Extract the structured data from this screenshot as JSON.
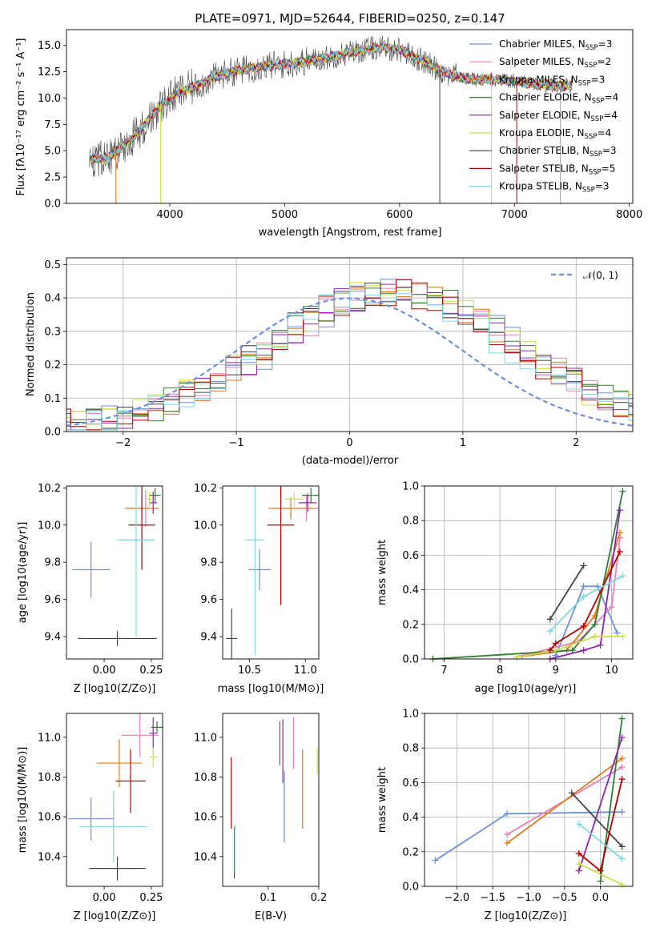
{
  "palette": [
    "#6b8fdc",
    "#e87fb8",
    "#e07a1e",
    "#2e7d32",
    "#8e24aa",
    "#c8e04a",
    "#444444",
    "#b00000",
    "#7fd8e0"
  ],
  "chart_data": [
    {
      "id": "spectrum",
      "type": "line",
      "title": "PLATE=0971, MJD=52644, FIBERID=0250, z=0.147",
      "xlabel": "wavelength [Angstrom, rest frame]",
      "ylabel": "Flux [fλ10⁻¹⁷ erg cm⁻² s⁻¹ A⁻¹]",
      "xlim": [
        3100,
        8030
      ],
      "ylim": [
        0,
        16.5
      ],
      "xticks": [
        "4000",
        "5000",
        "6000",
        "7000",
        "8000"
      ],
      "yticks": [
        "0.0",
        "2.5",
        "5.0",
        "7.5",
        "10.0",
        "12.5",
        "15.0"
      ],
      "legend_position": "top-right",
      "series": [
        {
          "name": "Chabrier MILES, N_SSP=3",
          "label_main": "Chabrier MILES, N",
          "label_sub": "SSP",
          "label_tail": "=3"
        },
        {
          "name": "Salpeter MILES, N_SSP=2",
          "label_main": "Salpeter MILES, N",
          "label_sub": "SSP",
          "label_tail": "=2"
        },
        {
          "name": "Kroupa MILES, N_SSP=3",
          "label_main": "Kroupa MILES, N",
          "label_sub": "SSP",
          "label_tail": "=3"
        },
        {
          "name": "Chabrier ELODIE, N_SSP=4",
          "label_main": "Chabrier ELODIE, N",
          "label_sub": "SSP",
          "label_tail": "=4"
        },
        {
          "name": "Salpeter ELODIE, N_SSP=4",
          "label_main": "Salpeter ELODIE, N",
          "label_sub": "SSP",
          "label_tail": "=4"
        },
        {
          "name": "Kroupa ELODIE, N_SSP=4",
          "label_main": "Kroupa ELODIE, N",
          "label_sub": "SSP",
          "label_tail": "=4"
        },
        {
          "name": "Chabrier STELIB, N_SSP=3",
          "label_main": "Chabrier STELIB, N",
          "label_sub": "SSP",
          "label_tail": "=3"
        },
        {
          "name": "Salpeter STELIB, N_SSP=5",
          "label_main": "Salpeter STELIB, N",
          "label_sub": "SSP",
          "label_tail": "=5"
        },
        {
          "name": "Kroupa STELIB, N_SSP=3",
          "label_main": "Kroupa STELIB, N",
          "label_sub": "SSP",
          "label_tail": "=3"
        }
      ],
      "continuum": {
        "x": [
          3300,
          3400,
          3500,
          3600,
          3700,
          3800,
          3900,
          4000,
          4100,
          4200,
          4300,
          4400,
          4500,
          4600,
          4700,
          4800,
          4900,
          5000,
          5200,
          5400,
          5600,
          5800,
          6000,
          6200,
          6400,
          6600,
          6800,
          7000,
          7200,
          7400,
          7500
        ],
        "y": [
          4.3,
          4.2,
          4.6,
          5.5,
          6.5,
          7.8,
          9.0,
          10.0,
          10.6,
          11.0,
          11.5,
          12.0,
          12.4,
          12.6,
          12.8,
          13.0,
          13.1,
          13.2,
          13.5,
          13.9,
          14.4,
          14.8,
          14.6,
          13.5,
          12.4,
          11.8,
          11.8,
          11.6,
          11.3,
          11.2,
          11.2
        ]
      }
    },
    {
      "id": "residuals",
      "type": "histogram",
      "xlabel": "(data-model)/error",
      "ylabel": "Normed distribution",
      "xlim": [
        -2.5,
        2.5
      ],
      "ylim": [
        0,
        0.52
      ],
      "xticks": [
        "−2",
        "−1",
        "0",
        "1",
        "2"
      ],
      "yticks": [
        "0.0",
        "0.1",
        "0.2",
        "0.3",
        "0.4",
        "0.5"
      ],
      "reference_curve": {
        "name": "𝒩(0, 1)",
        "mean": 0,
        "sigma": 1
      },
      "grid": true
    },
    {
      "id": "age-vs-Z",
      "type": "errorbar",
      "xlabel": "Z [log10(Z/Z⊙)]",
      "ylabel": "age  [log10(age/yr)]",
      "xlim": [
        -0.2,
        0.31
      ],
      "ylim": [
        9.28,
        10.21
      ],
      "xticks": [
        "0.00",
        "0.25"
      ],
      "yticks": [
        "9.4",
        "9.6",
        "9.8",
        "10.0",
        "10.2"
      ],
      "points": [
        {
          "x": -0.07,
          "xerr": 0.1,
          "y": 9.76,
          "yerr": 0.15
        },
        {
          "x": 0.22,
          "xerr": 0.04,
          "y": 10.09,
          "yerr": 0.1
        },
        {
          "x": 0.2,
          "xerr": 0.09,
          "y": 10.09,
          "yerr": 0.06
        },
        {
          "x": 0.27,
          "xerr": 0.03,
          "y": 10.16,
          "yerr": 0.04
        },
        {
          "x": 0.26,
          "xerr": 0.02,
          "y": 10.12,
          "yerr": 0.06
        },
        {
          "x": 0.24,
          "xerr": 0.01,
          "y": 10.14,
          "yerr": 0.04
        },
        {
          "x": 0.07,
          "xerr": 0.21,
          "y": 9.39,
          "yerr": 0.04
        },
        {
          "x": 0.2,
          "xerr": 0.07,
          "y": 10.0,
          "yerr": 0.24
        },
        {
          "x": 0.17,
          "xerr": 0.1,
          "y": 9.92,
          "yerr": 0.52
        }
      ]
    },
    {
      "id": "age-vs-mass",
      "type": "errorbar",
      "xlabel": "mass [log10(M/M⊙)]",
      "ylabel": "",
      "xlim": [
        10.26,
        11.12
      ],
      "ylim": [
        9.28,
        10.21
      ],
      "xticks": [
        "10.5",
        "11.0"
      ],
      "yticks": [
        "9.4",
        "9.6",
        "9.8",
        "10.0",
        "10.2"
      ],
      "points": [
        {
          "x": 10.59,
          "xerr": 0.1,
          "y": 9.76,
          "yerr": 0.11
        },
        {
          "x": 11.01,
          "xerr": 0.12,
          "y": 10.09,
          "yerr": 0.07
        },
        {
          "x": 10.87,
          "xerr": 0.2,
          "y": 10.09,
          "yerr": 0.06
        },
        {
          "x": 11.05,
          "xerr": 0.08,
          "y": 10.16,
          "yerr": 0.04
        },
        {
          "x": 11.02,
          "xerr": 0.08,
          "y": 10.12,
          "yerr": 0.05
        },
        {
          "x": 10.9,
          "xerr": 0.08,
          "y": 10.14,
          "yerr": 0.04
        },
        {
          "x": 10.34,
          "xerr": 0.05,
          "y": 9.39,
          "yerr": 0.16
        },
        {
          "x": 10.78,
          "xerr": 0.12,
          "y": 10.0,
          "yerr": 0.43
        },
        {
          "x": 10.55,
          "xerr": 0.08,
          "y": 9.92,
          "yerr": 0.62
        }
      ]
    },
    {
      "id": "weight-vs-age",
      "type": "line",
      "xlabel": "age  [log10(age/yr)]",
      "ylabel": "mass weight",
      "xlim": [
        6.65,
        10.38
      ],
      "ylim": [
        0,
        1.0
      ],
      "xticks": [
        "7",
        "8",
        "9",
        "10"
      ],
      "yticks": [
        "0.0",
        "0.2",
        "0.4",
        "0.6",
        "0.8",
        "1.0"
      ],
      "grid": true,
      "series": [
        {
          "x": [
            9.0,
            9.5,
            9.75,
            10.1
          ],
          "y": [
            0.02,
            0.42,
            0.42,
            0.15
          ]
        },
        {
          "x": [
            8.4,
            9.4,
            10.0,
            10.15
          ],
          "y": [
            0.02,
            0.1,
            0.3,
            0.7
          ]
        },
        {
          "x": [
            8.3,
            9.2,
            9.7,
            10.15
          ],
          "y": [
            0.01,
            0.05,
            0.25,
            0.73
          ]
        },
        {
          "x": [
            6.8,
            9.3,
            9.7,
            10.2
          ],
          "y": [
            0.0,
            0.05,
            0.2,
            0.97
          ]
        },
        {
          "x": [
            8.9,
            9.5,
            9.8,
            10.15
          ],
          "y": [
            0.0,
            0.05,
            0.08,
            0.86
          ]
        },
        {
          "x": [
            8.3,
            9.0,
            9.7,
            10.2
          ],
          "y": [
            0.01,
            0.05,
            0.13,
            0.13
          ]
        },
        {
          "x": [
            8.9,
            9.5
          ],
          "y": [
            0.23,
            0.54
          ]
        },
        {
          "x": [
            8.9,
            9.0,
            9.5,
            10.15
          ],
          "y": [
            0.05,
            0.09,
            0.19,
            0.62
          ]
        },
        {
          "x": [
            8.9,
            9.5,
            10.2
          ],
          "y": [
            0.16,
            0.36,
            0.48
          ]
        }
      ]
    },
    {
      "id": "mass-vs-Z",
      "type": "errorbar",
      "xlabel": "Z [log10(Z/Z⊙)]",
      "ylabel": "mass [log10(M/M⊙)]",
      "xlim": [
        -0.2,
        0.31
      ],
      "ylim": [
        10.25,
        11.12
      ],
      "xticks": [
        "0.00",
        "0.25"
      ],
      "yticks": [
        "10.4",
        "10.6",
        "10.8",
        "11.0"
      ],
      "points": [
        {
          "x": -0.07,
          "xerr": 0.12,
          "y": 10.59,
          "yerr": 0.11
        },
        {
          "x": 0.19,
          "xerr": 0.1,
          "y": 11.01,
          "yerr": 0.11
        },
        {
          "x": 0.08,
          "xerr": 0.12,
          "y": 10.87,
          "yerr": 0.12
        },
        {
          "x": 0.28,
          "xerr": 0.03,
          "y": 11.05,
          "yerr": 0.03
        },
        {
          "x": 0.26,
          "xerr": 0.02,
          "y": 11.02,
          "yerr": 0.08
        },
        {
          "x": 0.26,
          "xerr": 0.02,
          "y": 10.9,
          "yerr": 0.05
        },
        {
          "x": 0.07,
          "xerr": 0.15,
          "y": 10.34,
          "yerr": 0.06
        },
        {
          "x": 0.14,
          "xerr": 0.08,
          "y": 10.78,
          "yerr": 0.16
        },
        {
          "x": 0.05,
          "xerr": 0.18,
          "y": 10.55,
          "yerr": 0.18
        }
      ]
    },
    {
      "id": "mass-vs-EBV",
      "type": "errorbar",
      "xlabel": "E(B-V)",
      "ylabel": "",
      "xlim": [
        0.01,
        0.2
      ],
      "ylim": [
        10.25,
        11.12
      ],
      "xticks": [
        "0.1",
        "0.2"
      ],
      "yticks": [
        "10.4",
        "10.6",
        "10.8",
        "11.0"
      ],
      "points": [
        {
          "x": 0.132,
          "xerr": 0,
          "y": 10.65,
          "yerr": 0.18
        },
        {
          "x": 0.15,
          "xerr": 0,
          "y": 10.97,
          "yerr": 0.13
        },
        {
          "x": 0.168,
          "xerr": 0,
          "y": 10.74,
          "yerr": 0.2
        },
        {
          "x": 0.123,
          "xerr": 0,
          "y": 10.97,
          "yerr": 0.11
        },
        {
          "x": 0.129,
          "xerr": 0,
          "y": 10.93,
          "yerr": 0.16
        },
        {
          "x": 0.197,
          "xerr": 0,
          "y": 10.88,
          "yerr": 0.07
        },
        {
          "x": 0.033,
          "xerr": 0,
          "y": 10.42,
          "yerr": 0.13
        },
        {
          "x": 0.027,
          "xerr": 0,
          "y": 10.72,
          "yerr": 0.18
        },
        {
          "x": 0.034,
          "xerr": 0,
          "y": 10.44,
          "yerr": 0.12
        }
      ]
    },
    {
      "id": "weight-vs-Z",
      "type": "line",
      "xlabel": "Z [log10(Z/Z⊙)]",
      "ylabel": "mass weight",
      "xlim": [
        -2.45,
        0.45
      ],
      "ylim": [
        0,
        1.0
      ],
      "xticks": [
        "−2.0",
        "−1.5",
        "−1.0",
        "−0.5",
        "0.0"
      ],
      "yticks": [
        "0.0",
        "0.2",
        "0.4",
        "0.6",
        "0.8",
        "1.0"
      ],
      "grid": true,
      "series": [
        {
          "x": [
            -2.3,
            -1.3,
            0.3
          ],
          "y": [
            0.15,
            0.42,
            0.43
          ]
        },
        {
          "x": [
            -1.3,
            0.3
          ],
          "y": [
            0.3,
            0.69
          ]
        },
        {
          "x": [
            -1.3,
            0.3
          ],
          "y": [
            0.25,
            0.74
          ]
        },
        {
          "x": [
            0.0,
            0.3
          ],
          "y": [
            0.03,
            0.97
          ]
        },
        {
          "x": [
            -0.3,
            0.3
          ],
          "y": [
            0.09,
            0.86
          ]
        },
        {
          "x": [
            -0.3,
            0.3
          ],
          "y": [
            0.13,
            0.01
          ]
        },
        {
          "x": [
            -0.4,
            0.3
          ],
          "y": [
            0.54,
            0.23
          ]
        },
        {
          "x": [
            -0.3,
            0.0,
            0.3
          ],
          "y": [
            0.19,
            0.09,
            0.62
          ]
        },
        {
          "x": [
            -0.3,
            0.3
          ],
          "y": [
            0.36,
            0.16
          ]
        }
      ]
    }
  ]
}
